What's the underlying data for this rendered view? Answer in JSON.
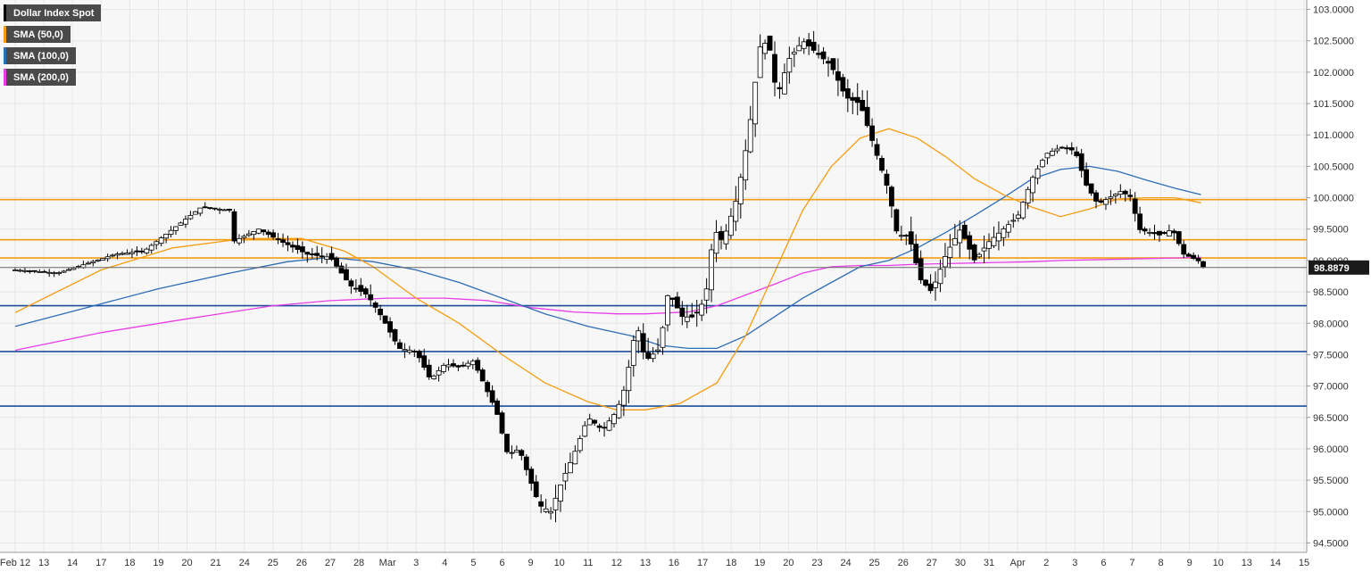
{
  "chart_data": {
    "type": "candlestick",
    "title": "",
    "instrument": "Dollar Index Spot",
    "legend": [
      {
        "name": "Dollar Index Spot",
        "color": "#000000"
      },
      {
        "name": "SMA (50,0)",
        "color": "#f39c12"
      },
      {
        "name": "SMA (100,0)",
        "color": "#2e6db4"
      },
      {
        "name": "SMA (200,0)",
        "color": "#e83ee8"
      }
    ],
    "legend_position": "top-left",
    "grid": true,
    "ylim": [
      94.35,
      103.15
    ],
    "y_ticks": [
      "94.5000",
      "95.0000",
      "95.5000",
      "96.0000",
      "96.5000",
      "97.0000",
      "97.5000",
      "98.0000",
      "98.5000",
      "99.0000",
      "99.5000",
      "100.0000",
      "100.5000",
      "101.0000",
      "101.5000",
      "102.0000",
      "102.5000",
      "103.0000"
    ],
    "x_ticks": [
      "Feb 12",
      "13",
      "14",
      "17",
      "18",
      "19",
      "20",
      "21",
      "24",
      "25",
      "26",
      "27",
      "28",
      "Mar",
      "3",
      "4",
      "5",
      "6",
      "9",
      "10",
      "11",
      "12",
      "13",
      "16",
      "17",
      "18",
      "19",
      "20",
      "23",
      "24",
      "25",
      "26",
      "27",
      "30",
      "31",
      "Apr",
      "2",
      "3",
      "6",
      "7",
      "8",
      "9",
      "10",
      "13",
      "14",
      "15"
    ],
    "last_price": "98.8879",
    "horizontal_levels": [
      {
        "value": 99.97,
        "color": "#f39c12"
      },
      {
        "value": 99.33,
        "color": "#f39c12"
      },
      {
        "value": 99.04,
        "color": "#f39c12"
      },
      {
        "value": 98.28,
        "color": "#1f4e99"
      },
      {
        "value": 97.55,
        "color": "#1f4e99"
      },
      {
        "value": 96.68,
        "color": "#1f4e99"
      }
    ],
    "close_path": [
      [
        0,
        98.85
      ],
      [
        1.5,
        98.8
      ],
      [
        2.5,
        98.95
      ],
      [
        3.5,
        99.1
      ],
      [
        4.5,
        99.15
      ],
      [
        5.5,
        99.5
      ],
      [
        6.5,
        99.85
      ],
      [
        7.5,
        99.8
      ],
      [
        7.6,
        99.3
      ],
      [
        8.5,
        99.5
      ],
      [
        9.3,
        99.3
      ],
      [
        10.2,
        99.1
      ],
      [
        11,
        99.05
      ],
      [
        11.7,
        98.6
      ],
      [
        12.3,
        98.45
      ],
      [
        12.8,
        98.1
      ],
      [
        13.4,
        97.6
      ],
      [
        14,
        97.55
      ],
      [
        14.5,
        97.1
      ],
      [
        15,
        97.35
      ],
      [
        15.5,
        97.3
      ],
      [
        16,
        97.4
      ],
      [
        16.4,
        97.0
      ],
      [
        16.8,
        96.6
      ],
      [
        17.2,
        95.9
      ],
      [
        17.6,
        96.0
      ],
      [
        17.9,
        95.6
      ],
      [
        18.3,
        95.1
      ],
      [
        18.7,
        95.0
      ],
      [
        19.1,
        95.5
      ],
      [
        19.5,
        95.9
      ],
      [
        20,
        96.5
      ],
      [
        20.5,
        96.3
      ],
      [
        21,
        96.6
      ],
      [
        21.3,
        97.0
      ],
      [
        21.7,
        98.0
      ],
      [
        22,
        97.4
      ],
      [
        22.5,
        97.6
      ],
      [
        22.8,
        98.5
      ],
      [
        23.3,
        98.1
      ],
      [
        23.7,
        98.1
      ],
      [
        24.1,
        98.4
      ],
      [
        24.4,
        99.5
      ],
      [
        24.7,
        99.3
      ],
      [
        25.2,
        100.0
      ],
      [
        25.6,
        101.0
      ],
      [
        26,
        102.4
      ],
      [
        26.3,
        102.5
      ],
      [
        26.6,
        101.6
      ],
      [
        27,
        102.2
      ],
      [
        27.5,
        102.5
      ],
      [
        28,
        102.3
      ],
      [
        28.5,
        102.1
      ],
      [
        29,
        101.6
      ],
      [
        29.5,
        101.5
      ],
      [
        30,
        100.8
      ],
      [
        30.5,
        100.1
      ],
      [
        30.8,
        99.4
      ],
      [
        31.2,
        99.4
      ],
      [
        31.6,
        98.7
      ],
      [
        32,
        98.5
      ],
      [
        32.5,
        99.1
      ],
      [
        33,
        99.5
      ],
      [
        33.5,
        99.0
      ],
      [
        34,
        99.3
      ],
      [
        34.5,
        99.5
      ],
      [
        35,
        99.7
      ],
      [
        35.5,
        100.3
      ],
      [
        36,
        100.7
      ],
      [
        36.5,
        100.8
      ],
      [
        37,
        100.75
      ],
      [
        37.4,
        100.2
      ],
      [
        37.8,
        99.9
      ],
      [
        38.2,
        100.0
      ],
      [
        38.6,
        100.1
      ],
      [
        39,
        100.0
      ],
      [
        39.2,
        99.5
      ],
      [
        39.6,
        99.45
      ],
      [
        40,
        99.4
      ],
      [
        40.4,
        99.5
      ],
      [
        40.8,
        99.1
      ],
      [
        41.3,
        99.0
      ],
      [
        41.5,
        98.89
      ]
    ],
    "high_low_path": [
      [
        0,
        98.75,
        98.95
      ],
      [
        3,
        98.9,
        99.2
      ],
      [
        6.5,
        99.6,
        99.95
      ],
      [
        9,
        99.2,
        99.6
      ],
      [
        12,
        98.3,
        99.1
      ],
      [
        14,
        97.3,
        97.8
      ],
      [
        16,
        97.2,
        97.55
      ],
      [
        17.2,
        95.7,
        96.1
      ],
      [
        18.5,
        94.65,
        95.7
      ],
      [
        20,
        96.2,
        96.65
      ],
      [
        22,
        97.3,
        98.4
      ],
      [
        23.5,
        97.5,
        98.5
      ],
      [
        25.6,
        100.8,
        101.8
      ],
      [
        26.5,
        101.5,
        103.0
      ],
      [
        27.5,
        102.0,
        102.7
      ],
      [
        29,
        101.1,
        102.2
      ],
      [
        30.5,
        99.8,
        100.9
      ],
      [
        32,
        98.25,
        99.2
      ],
      [
        34,
        98.9,
        99.9
      ],
      [
        36.5,
        100.5,
        100.9
      ],
      [
        38.5,
        99.8,
        100.4
      ],
      [
        40.5,
        99.1,
        99.6
      ],
      [
        41.5,
        98.8,
        99.1
      ]
    ],
    "sma50": [
      [
        0,
        98.17
      ],
      [
        3,
        98.85
      ],
      [
        5.5,
        99.2
      ],
      [
        8,
        99.35
      ],
      [
        10,
        99.35
      ],
      [
        11.5,
        99.15
      ],
      [
        12.5,
        98.9
      ],
      [
        14,
        98.4
      ],
      [
        15.5,
        98.0
      ],
      [
        17,
        97.5
      ],
      [
        18.5,
        97.05
      ],
      [
        20,
        96.75
      ],
      [
        21,
        96.62
      ],
      [
        22,
        96.62
      ],
      [
        23.2,
        96.72
      ],
      [
        24.5,
        97.05
      ],
      [
        25.5,
        97.8
      ],
      [
        26.5,
        98.8
      ],
      [
        27.5,
        99.8
      ],
      [
        28.5,
        100.5
      ],
      [
        29.5,
        100.95
      ],
      [
        30.5,
        101.1
      ],
      [
        31.5,
        100.95
      ],
      [
        32.5,
        100.65
      ],
      [
        33.5,
        100.3
      ],
      [
        34.5,
        100.05
      ],
      [
        35.5,
        99.85
      ],
      [
        36.5,
        99.7
      ],
      [
        37.5,
        99.82
      ],
      [
        38.5,
        99.98
      ],
      [
        39.5,
        100.0
      ],
      [
        40.5,
        100.0
      ],
      [
        41.4,
        99.92
      ]
    ],
    "sma100": [
      [
        0,
        97.95
      ],
      [
        2.5,
        98.25
      ],
      [
        5,
        98.55
      ],
      [
        7.5,
        98.8
      ],
      [
        9.5,
        98.98
      ],
      [
        11,
        99.05
      ],
      [
        12.5,
        98.98
      ],
      [
        14,
        98.85
      ],
      [
        15.5,
        98.65
      ],
      [
        17,
        98.4
      ],
      [
        18.5,
        98.15
      ],
      [
        20,
        97.95
      ],
      [
        21.5,
        97.8
      ],
      [
        22.5,
        97.65
      ],
      [
        23.5,
        97.6
      ],
      [
        24.5,
        97.6
      ],
      [
        25.5,
        97.8
      ],
      [
        26.5,
        98.1
      ],
      [
        27.5,
        98.4
      ],
      [
        28.5,
        98.65
      ],
      [
        29.5,
        98.9
      ],
      [
        30.5,
        99.0
      ],
      [
        31.5,
        99.2
      ],
      [
        32.5,
        99.45
      ],
      [
        33.5,
        99.72
      ],
      [
        34.5,
        100.0
      ],
      [
        35.5,
        100.3
      ],
      [
        36.5,
        100.45
      ],
      [
        37.5,
        100.5
      ],
      [
        38.5,
        100.42
      ],
      [
        39.5,
        100.28
      ],
      [
        40.5,
        100.15
      ],
      [
        41.4,
        100.05
      ]
    ],
    "sma200": [
      [
        0,
        97.57
      ],
      [
        3,
        97.85
      ],
      [
        6,
        98.07
      ],
      [
        9,
        98.28
      ],
      [
        11,
        98.36
      ],
      [
        13,
        98.4
      ],
      [
        15,
        98.4
      ],
      [
        16.5,
        98.36
      ],
      [
        18,
        98.25
      ],
      [
        19.5,
        98.18
      ],
      [
        21,
        98.15
      ],
      [
        22,
        98.15
      ],
      [
        23.5,
        98.18
      ],
      [
        24.5,
        98.28
      ],
      [
        25.5,
        98.45
      ],
      [
        26.5,
        98.62
      ],
      [
        27.5,
        98.8
      ],
      [
        28.5,
        98.9
      ],
      [
        29.5,
        98.92
      ],
      [
        30.5,
        98.92
      ],
      [
        31.5,
        98.94
      ],
      [
        32.5,
        98.95
      ],
      [
        33.5,
        98.96
      ],
      [
        34.5,
        98.97
      ],
      [
        35.5,
        98.98
      ],
      [
        36.5,
        99.0
      ],
      [
        37.5,
        99.01
      ],
      [
        38.5,
        99.02
      ],
      [
        39.5,
        99.03
      ],
      [
        40.5,
        99.04
      ],
      [
        41.4,
        99.05
      ]
    ]
  }
}
